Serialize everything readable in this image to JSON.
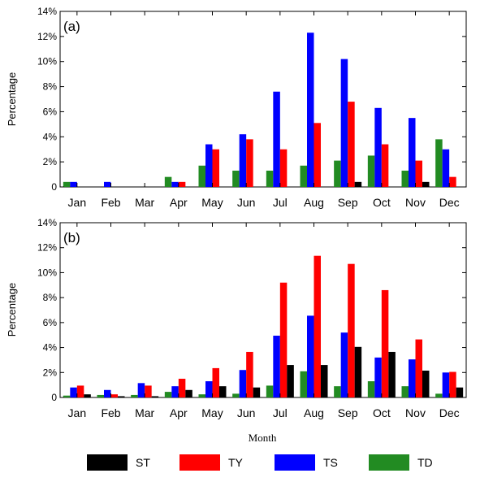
{
  "figure": {
    "xlabel": "Month",
    "legend": {
      "placement": "bottom",
      "entries": [
        {
          "name": "ST",
          "color": "#000000"
        },
        {
          "name": "TY",
          "color": "#ff0000"
        },
        {
          "name": "TS",
          "color": "#0000ff"
        },
        {
          "name": "TD",
          "color": "#228b22"
        }
      ]
    }
  },
  "chart_data": [
    {
      "type": "bar",
      "panel_label": "(a)",
      "ylabel": "Percentage",
      "ylim": [
        0,
        14
      ],
      "yticks": [
        "0",
        "2%",
        "4%",
        "6%",
        "8%",
        "10%",
        "12%",
        "14%"
      ],
      "categories": [
        "Jan",
        "Feb",
        "Mar",
        "Apr",
        "May",
        "Jun",
        "Jul",
        "Aug",
        "Sep",
        "Oct",
        "Nov",
        "Dec"
      ],
      "grid": false,
      "series": [
        {
          "name": "TD",
          "color": "#228b22",
          "values": [
            0.4,
            0,
            0,
            0.8,
            1.7,
            1.3,
            1.3,
            1.7,
            2.1,
            2.5,
            1.3,
            3.8
          ]
        },
        {
          "name": "TS",
          "color": "#0000ff",
          "values": [
            0.4,
            0.4,
            0,
            0.4,
            3.4,
            4.2,
            7.6,
            12.3,
            10.2,
            6.3,
            5.5,
            3.0
          ]
        },
        {
          "name": "TY",
          "color": "#ff0000",
          "values": [
            0,
            0,
            0,
            0.4,
            3.0,
            3.8,
            3.0,
            5.1,
            6.8,
            3.4,
            2.1,
            0.8
          ]
        },
        {
          "name": "ST",
          "color": "#000000",
          "values": [
            0,
            0,
            0,
            0,
            0,
            0,
            0,
            0,
            0.4,
            0,
            0.4,
            0
          ]
        }
      ]
    },
    {
      "type": "bar",
      "panel_label": "(b)",
      "ylabel": "Percentage",
      "ylim": [
        0,
        14
      ],
      "yticks": [
        "0",
        "2%",
        "4%",
        "6%",
        "8%",
        "10%",
        "12%",
        "14%"
      ],
      "categories": [
        "Jan",
        "Feb",
        "Mar",
        "Apr",
        "May",
        "Jun",
        "Jul",
        "Aug",
        "Sep",
        "Oct",
        "Nov",
        "Dec"
      ],
      "grid": false,
      "series": [
        {
          "name": "TD",
          "color": "#228b22",
          "values": [
            0.15,
            0.2,
            0.2,
            0.45,
            0.25,
            0.3,
            0.95,
            2.1,
            0.9,
            1.3,
            0.9,
            0.3
          ]
        },
        {
          "name": "TS",
          "color": "#0000ff",
          "values": [
            0.8,
            0.6,
            1.15,
            0.9,
            1.3,
            2.2,
            4.95,
            6.55,
            5.2,
            3.2,
            3.05,
            2.0
          ]
        },
        {
          "name": "TY",
          "color": "#ff0000",
          "values": [
            0.95,
            0.25,
            0.95,
            1.5,
            2.35,
            3.65,
            9.2,
            11.35,
            10.7,
            8.6,
            4.65,
            2.05
          ]
        },
        {
          "name": "ST",
          "color": "#000000",
          "values": [
            0.25,
            0.1,
            0.1,
            0.6,
            0.9,
            0.8,
            2.6,
            2.6,
            4.05,
            3.65,
            2.15,
            0.8
          ]
        }
      ]
    }
  ]
}
